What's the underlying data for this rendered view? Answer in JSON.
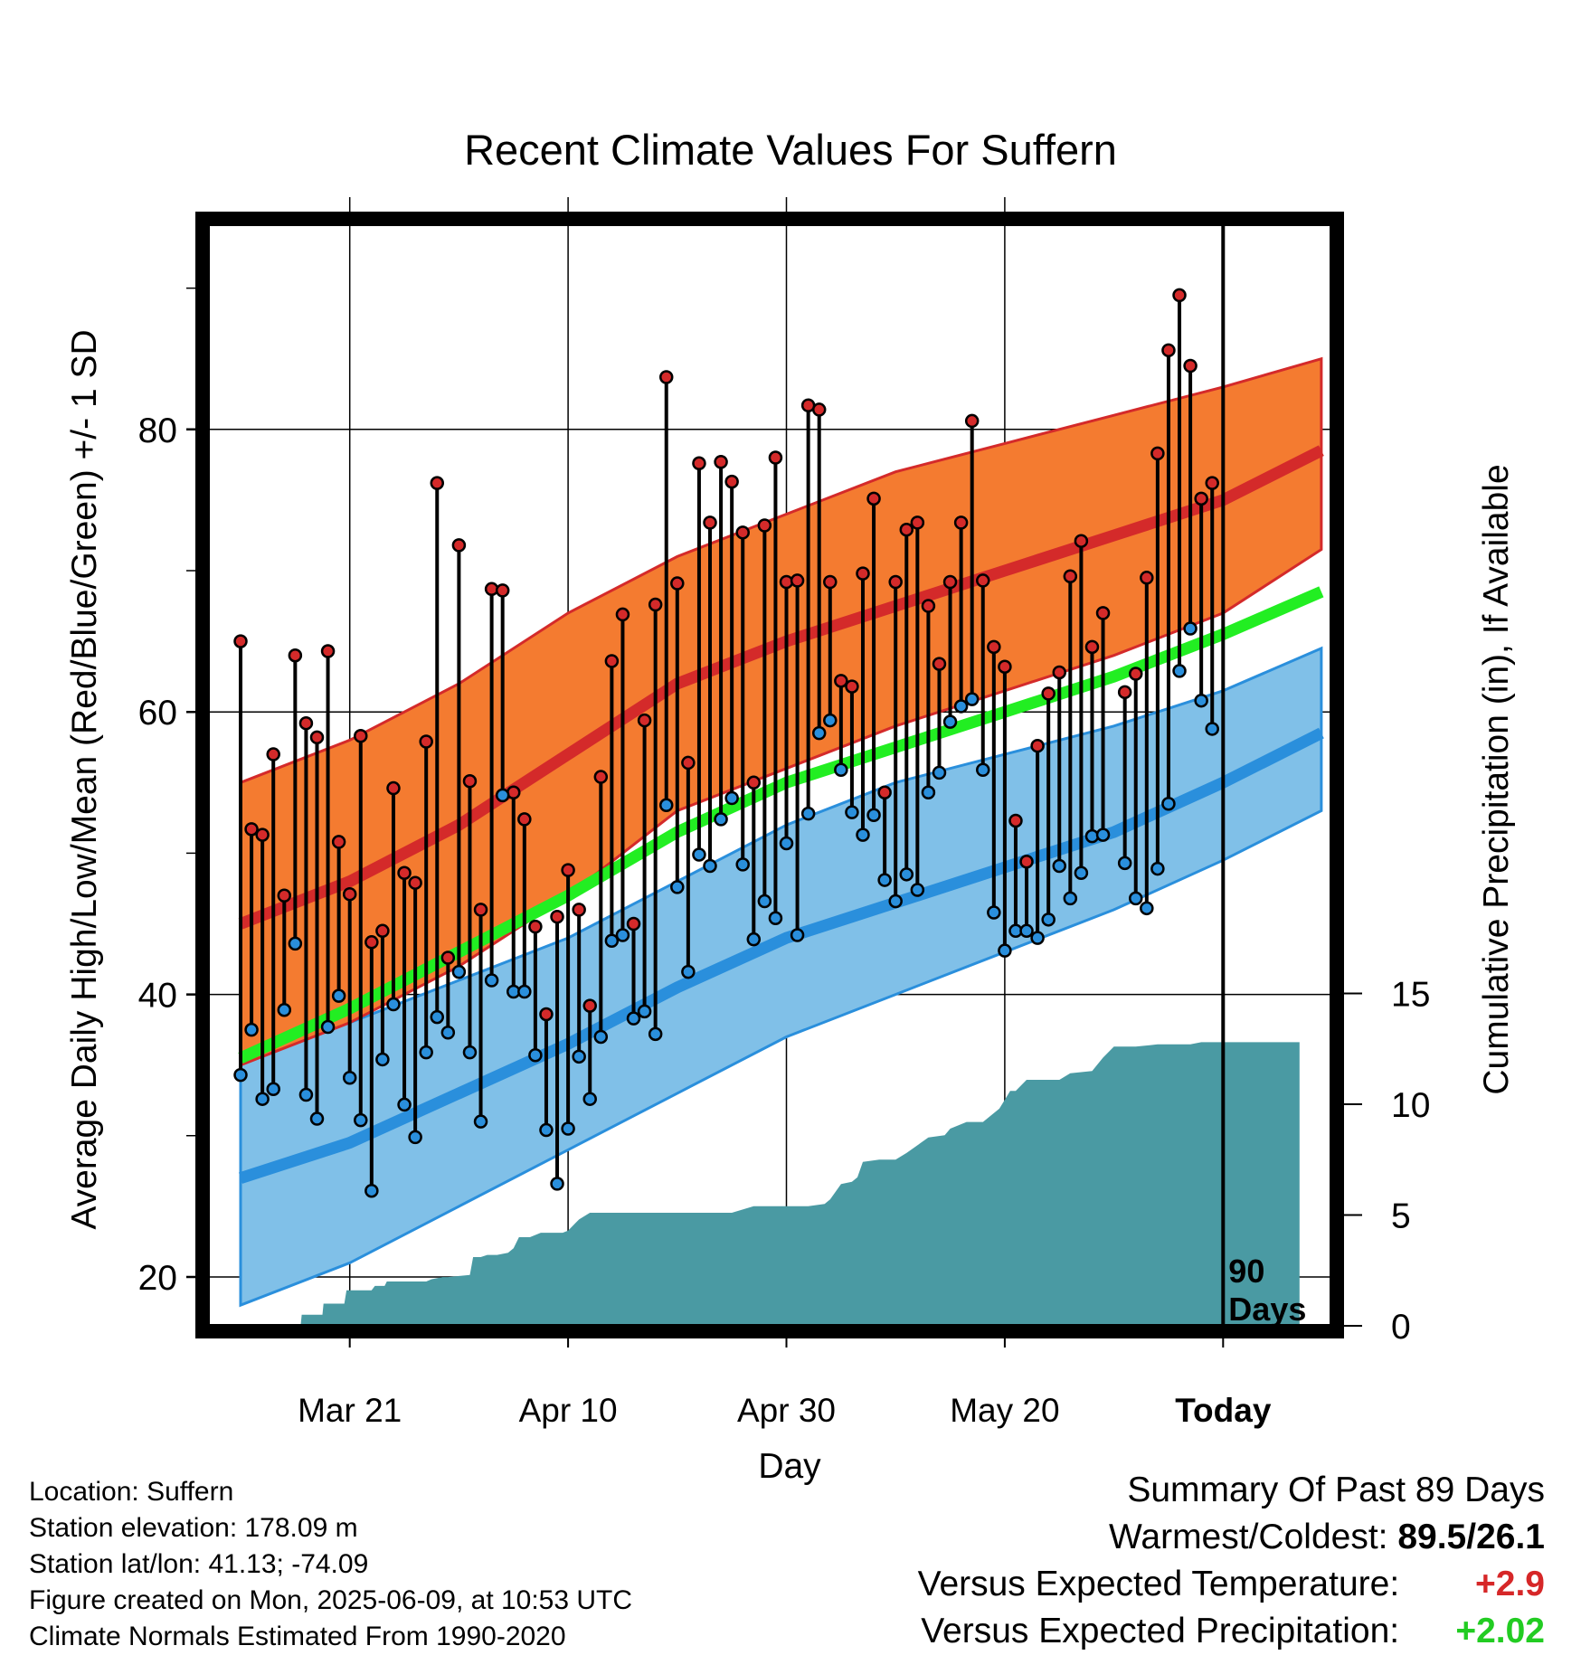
{
  "chart_data": {
    "type": "line",
    "title": "Recent Climate Values For Suffern",
    "xlabel": "Day",
    "ylabel": "Average Daily High/Low/Mean (Red/Blue/Green) +/- 1 SD",
    "y2label": "Cumulative Precipitation (in), If Available",
    "day_range": [
      0,
      97
    ],
    "ylim": [
      16,
      96
    ],
    "y2lim": [
      0,
      30
    ],
    "yticks": [
      20,
      40,
      60,
      80
    ],
    "y2ticks": [
      0,
      5,
      10,
      15
    ],
    "xticks": [
      {
        "day": 10,
        "label": "Mar 21"
      },
      {
        "day": 30,
        "label": "Apr 10"
      },
      {
        "day": 50,
        "label": "Apr 30"
      },
      {
        "day": 70,
        "label": "May 20"
      },
      {
        "day": 90,
        "label": "Today"
      }
    ],
    "today_marker": {
      "day": 90,
      "label_line1": "90",
      "label_line2": "Days"
    },
    "normals": {
      "days": [
        0,
        10,
        20,
        30,
        40,
        50,
        60,
        70,
        80,
        90,
        99
      ],
      "high_mean": [
        45,
        48,
        52,
        57,
        62,
        65,
        67.5,
        70,
        72.5,
        75,
        78.5
      ],
      "high_sd_upper": [
        55,
        58,
        62,
        67,
        71,
        74,
        77,
        79,
        81,
        83,
        85
      ],
      "high_sd_lower": [
        35,
        38,
        42,
        47,
        53,
        56,
        59,
        61.5,
        64,
        67,
        71.5
      ],
      "daily_mean": [
        35.5,
        39,
        43,
        47,
        51.5,
        55,
        57.5,
        60,
        62.5,
        65.5,
        68.5
      ],
      "low_mean": [
        27,
        29.5,
        33,
        36.5,
        40.5,
        44,
        46.5,
        49,
        51.5,
        55,
        58.5
      ],
      "low_sd_upper": [
        36,
        38,
        41,
        44,
        48,
        52,
        55,
        57,
        59,
        61.5,
        64.5
      ],
      "low_sd_lower": [
        18,
        21,
        25,
        29,
        33,
        37,
        40,
        43,
        46,
        49.5,
        53
      ]
    },
    "series": [
      {
        "name": "High",
        "color": "#d42a2a",
        "values": [
          65,
          51.7,
          51.3,
          57,
          47,
          64,
          59.2,
          58.2,
          64.3,
          50.8,
          47.1,
          58.3,
          43.7,
          44.5,
          54.6,
          48.6,
          47.9,
          57.9,
          76.2,
          42.6,
          71.8,
          55.1,
          46,
          68.7,
          68.6,
          54.3,
          52.4,
          44.8,
          38.6,
          45.5,
          48.8,
          46,
          39.2,
          55.4,
          63.6,
          66.9,
          45,
          59.4,
          67.6,
          83.7,
          69.1,
          56.4,
          77.6,
          73.4,
          77.7,
          76.3,
          72.7,
          55,
          73.2,
          78,
          69.2,
          69.3,
          81.7,
          81.4,
          69.2,
          62.2,
          61.8,
          69.8,
          75.1,
          54.3,
          69.2,
          72.9,
          73.4,
          67.5,
          63.4,
          69.2,
          73.4,
          80.6,
          69.3,
          64.6,
          63.2,
          52.3,
          49.4,
          57.6,
          61.3,
          62.8,
          69.6,
          72.1,
          64.6,
          67,
          null,
          61.4,
          62.7,
          69.5,
          78.3,
          85.6,
          89.5,
          84.5,
          75.1,
          76.2
        ]
      },
      {
        "name": "Low",
        "color": "#2a8fdc",
        "values": [
          34.3,
          37.5,
          32.6,
          33.3,
          38.9,
          43.6,
          32.9,
          31.2,
          37.7,
          39.9,
          34.1,
          31.1,
          26.1,
          35.4,
          39.3,
          32.2,
          29.9,
          35.9,
          38.4,
          37.3,
          41.6,
          35.9,
          31,
          41,
          54.1,
          40.2,
          40.2,
          35.7,
          30.4,
          26.6,
          30.5,
          35.6,
          32.6,
          37,
          43.8,
          44.2,
          38.3,
          38.8,
          37.2,
          53.4,
          47.6,
          41.6,
          49.9,
          49.1,
          52.4,
          53.9,
          49.2,
          43.9,
          46.6,
          45.4,
          50.7,
          44.2,
          52.8,
          58.5,
          59.4,
          55.9,
          52.9,
          51.3,
          52.7,
          48.1,
          46.6,
          48.5,
          47.4,
          54.3,
          55.7,
          59.3,
          60.4,
          60.9,
          55.9,
          45.8,
          43.1,
          44.5,
          44.5,
          44,
          45.3,
          49.1,
          46.8,
          48.6,
          51.2,
          51.3,
          null,
          49.3,
          46.8,
          46.1,
          48.9,
          53.5,
          62.9,
          65.9,
          60.8,
          58.8
        ]
      }
    ],
    "precip_cumulative": {
      "days": [
        0,
        5.5,
        5.6,
        7.5,
        7.6,
        9.5,
        9.7,
        12,
        12.3,
        13.2,
        13.4,
        17,
        17.5,
        18.5,
        19,
        21,
        21.3,
        22,
        22.6,
        23.5,
        24.5,
        25,
        25.5,
        26.5,
        27.5,
        29.5,
        30,
        31,
        32,
        45,
        47,
        52,
        53.5,
        54,
        55,
        56,
        56.5,
        57,
        58.5,
        60,
        61,
        63,
        64.5,
        65,
        66.5,
        68,
        69.5,
        70,
        70.5,
        71,
        72,
        75,
        76,
        78,
        79,
        80,
        82,
        84,
        85,
        87,
        88,
        97
      ],
      "values": [
        0,
        0,
        0.5,
        0.5,
        1,
        1,
        1.6,
        1.6,
        1.8,
        1.8,
        2,
        2,
        2.1,
        2.2,
        2.2,
        2.3,
        3.1,
        3.1,
        3.2,
        3.2,
        3.3,
        3.5,
        4,
        4,
        4.2,
        4.2,
        4.3,
        4.8,
        5.1,
        5.1,
        5.4,
        5.4,
        5.5,
        5.7,
        6.4,
        6.5,
        6.7,
        7.4,
        7.5,
        7.5,
        7.8,
        8.5,
        8.6,
        8.9,
        9.2,
        9.2,
        9.8,
        10.2,
        10.6,
        10.6,
        11.1,
        11.1,
        11.4,
        11.5,
        12.1,
        12.6,
        12.6,
        12.7,
        12.7,
        12.7,
        12.8,
        12.8
      ]
    }
  },
  "info": {
    "location": "Location: Suffern",
    "elevation": "Station elevation: 178.09 m",
    "latlon": "Station lat/lon: 41.13; -74.09",
    "created": "Figure created on Mon, 2025-06-09, at 10:53 UTC",
    "normals_note": "Climate Normals Estimated From 1990-2020"
  },
  "summary": {
    "heading": "Summary Of Past 89 Days",
    "warmest_coldest_label": "Warmest/Coldest:",
    "warmest_coldest_value": "89.5/26.1",
    "temp_label": "Versus Expected Temperature:",
    "temp_value": "+2.9",
    "temp_color": "#d62728",
    "precip_label": "Versus Expected Precipitation:",
    "precip_value": "+2.02",
    "precip_color": "#22cc22"
  },
  "colors": {
    "high_band": "#f47b30",
    "high_mean_line": "#d42a2a",
    "low_band": "#80c0e8",
    "low_mean_line": "#2a8fdc",
    "mean_line": "#22ee22",
    "precip_fill": "#4a9aa3"
  }
}
